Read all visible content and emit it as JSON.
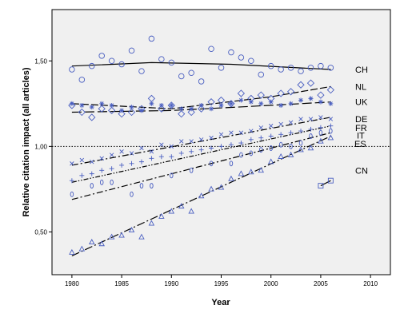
{
  "chart_data": {
    "type": "scatter",
    "xlabel": "Year",
    "ylabel": "Relative citation impact (all articles)",
    "xlim": [
      1978,
      2012
    ],
    "ylim": [
      0.25,
      1.8
    ],
    "x_ticks": [
      1980,
      1985,
      1990,
      1995,
      2000,
      2005,
      2010
    ],
    "y_ticks": [
      {
        "value": 0.5,
        "label": "0,50"
      },
      {
        "value": 1.0,
        "label": "1,00"
      },
      {
        "value": 1.5,
        "label": "1,50"
      }
    ],
    "reference_line": {
      "y": 1.0,
      "style": "dotted"
    },
    "grid": false,
    "legend": "series labels at right end of trend lines",
    "marker_color": "#4a5fc1",
    "series": [
      {
        "name": "CH",
        "marker": "circle",
        "x": [
          1980,
          1981,
          1982,
          1983,
          1984,
          1985,
          1986,
          1987,
          1988,
          1989,
          1990,
          1991,
          1992,
          1993,
          1994,
          1995,
          1996,
          1997,
          1998,
          1999,
          2000,
          2001,
          2002,
          2003,
          2004,
          2005,
          2006
        ],
        "y": [
          1.45,
          1.39,
          1.47,
          1.53,
          1.5,
          1.48,
          1.56,
          1.44,
          1.63,
          1.51,
          1.49,
          1.41,
          1.43,
          1.38,
          1.57,
          1.46,
          1.55,
          1.52,
          1.5,
          1.42,
          1.47,
          1.45,
          1.46,
          1.44,
          1.46,
          1.47,
          1.46
        ],
        "trend": [
          [
            1980,
            1.47
          ],
          [
            1988,
            1.49
          ],
          [
            1996,
            1.48
          ],
          [
            2006,
            1.45
          ]
        ],
        "trend_style": "solid"
      },
      {
        "name": "NL",
        "marker": "diamond",
        "x": [
          1980,
          1981,
          1982,
          1983,
          1984,
          1985,
          1986,
          1987,
          1988,
          1989,
          1990,
          1991,
          1992,
          1993,
          1994,
          1995,
          1996,
          1997,
          1998,
          1999,
          2000,
          2001,
          2002,
          2003,
          2004,
          2005,
          2006
        ],
        "y": [
          1.24,
          1.2,
          1.17,
          1.22,
          1.21,
          1.19,
          1.2,
          1.22,
          1.28,
          1.22,
          1.24,
          1.19,
          1.2,
          1.22,
          1.26,
          1.27,
          1.25,
          1.31,
          1.28,
          1.3,
          1.28,
          1.31,
          1.32,
          1.36,
          1.37,
          1.3,
          1.33
        ],
        "trend": [
          [
            1980,
            1.25
          ],
          [
            1990,
            1.22
          ],
          [
            2000,
            1.29
          ],
          [
            2006,
            1.35
          ]
        ],
        "trend_style": "dashed"
      },
      {
        "name": "UK",
        "marker": "asterisk",
        "x": [
          1980,
          1981,
          1982,
          1983,
          1984,
          1985,
          1986,
          1987,
          1988,
          1989,
          1990,
          1991,
          1992,
          1993,
          1994,
          1995,
          1996,
          1997,
          1998,
          1999,
          2000,
          2001,
          2002,
          2003,
          2004,
          2005,
          2006
        ],
        "y": [
          1.25,
          1.24,
          1.23,
          1.25,
          1.24,
          1.21,
          1.23,
          1.21,
          1.25,
          1.24,
          1.24,
          1.22,
          1.22,
          1.24,
          1.22,
          1.24,
          1.25,
          1.27,
          1.26,
          1.25,
          1.26,
          1.24,
          1.25,
          1.27,
          1.28,
          1.26,
          1.25
        ],
        "trend": [
          [
            1980,
            1.2
          ],
          [
            1990,
            1.21
          ],
          [
            2000,
            1.24
          ],
          [
            2006,
            1.26
          ]
        ],
        "trend_style": "long-dash"
      },
      {
        "name": "DE",
        "marker": "x",
        "x": [
          1980,
          1981,
          1982,
          1983,
          1984,
          1985,
          1986,
          1987,
          1988,
          1989,
          1990,
          1991,
          1992,
          1993,
          1994,
          1995,
          1996,
          1997,
          1998,
          1999,
          2000,
          2001,
          2002,
          2003,
          2004,
          2005,
          2006
        ],
        "y": [
          0.9,
          0.92,
          0.91,
          0.93,
          0.95,
          0.97,
          0.96,
          0.99,
          0.97,
          1.01,
          1.0,
          1.03,
          1.03,
          1.04,
          1.05,
          1.07,
          1.08,
          1.08,
          1.09,
          1.11,
          1.12,
          1.13,
          1.14,
          1.16,
          1.16,
          1.17,
          1.16
        ],
        "trend": [
          [
            1980,
            0.89
          ],
          [
            2006,
            1.17
          ]
        ],
        "trend_style": "dash-dot"
      },
      {
        "name": "FR",
        "marker": "plus",
        "x": [
          1980,
          1981,
          1982,
          1983,
          1984,
          1985,
          1986,
          1987,
          1988,
          1989,
          1990,
          1991,
          1992,
          1993,
          1994,
          1995,
          1996,
          1997,
          1998,
          1999,
          2000,
          2001,
          2002,
          2003,
          2004,
          2005,
          2006
        ],
        "y": [
          0.8,
          0.83,
          0.84,
          0.86,
          0.87,
          0.89,
          0.9,
          0.91,
          0.93,
          0.94,
          0.94,
          0.96,
          0.97,
          0.98,
          0.99,
          1.0,
          1.01,
          1.02,
          1.04,
          1.05,
          1.06,
          1.07,
          1.08,
          1.09,
          1.1,
          1.11,
          1.12
        ],
        "trend": [
          [
            1980,
            0.79
          ],
          [
            2006,
            1.12
          ]
        ],
        "trend_style": "dash-dot-dot"
      },
      {
        "name": "IT",
        "marker": "zero",
        "x": [
          1980,
          1982,
          1983,
          1984,
          1986,
          1987,
          1988,
          1990,
          1992,
          1994,
          1996,
          1997,
          1998,
          1999,
          2000,
          2001,
          2002,
          2003,
          2004,
          2005,
          2006
        ],
        "y": [
          0.72,
          0.77,
          0.79,
          0.79,
          0.72,
          0.77,
          0.77,
          0.83,
          0.86,
          0.9,
          0.9,
          0.95,
          0.96,
          0.98,
          0.99,
          1.01,
          1.0,
          1.02,
          1.06,
          1.08,
          1.09
        ],
        "trend": [
          [
            1980,
            0.69
          ],
          [
            2006,
            1.08
          ]
        ],
        "trend_style": "dash-dot"
      },
      {
        "name": "ES",
        "marker": "triangle",
        "x": [
          1980,
          1981,
          1982,
          1983,
          1984,
          1985,
          1986,
          1987,
          1988,
          1989,
          1990,
          1991,
          1992,
          1993,
          1994,
          1995,
          1996,
          1997,
          1998,
          1999,
          2000,
          2001,
          2002,
          2003,
          2004,
          2005,
          2006
        ],
        "y": [
          0.38,
          0.4,
          0.44,
          0.43,
          0.47,
          0.48,
          0.51,
          0.47,
          0.55,
          0.59,
          0.62,
          0.65,
          0.62,
          0.71,
          0.75,
          0.76,
          0.81,
          0.84,
          0.85,
          0.86,
          0.91,
          0.94,
          0.95,
          0.98,
          0.99,
          1.03,
          1.05
        ],
        "trend": [
          [
            1980,
            0.36
          ],
          [
            2006,
            1.06
          ]
        ],
        "trend_style": "long-dash-dot"
      },
      {
        "name": "CN",
        "marker": "square",
        "x": [
          2005,
          2006
        ],
        "y": [
          0.77,
          0.8
        ],
        "trend": [
          [
            2005,
            0.77
          ],
          [
            2006,
            0.8
          ]
        ],
        "trend_style": "solid"
      }
    ]
  }
}
